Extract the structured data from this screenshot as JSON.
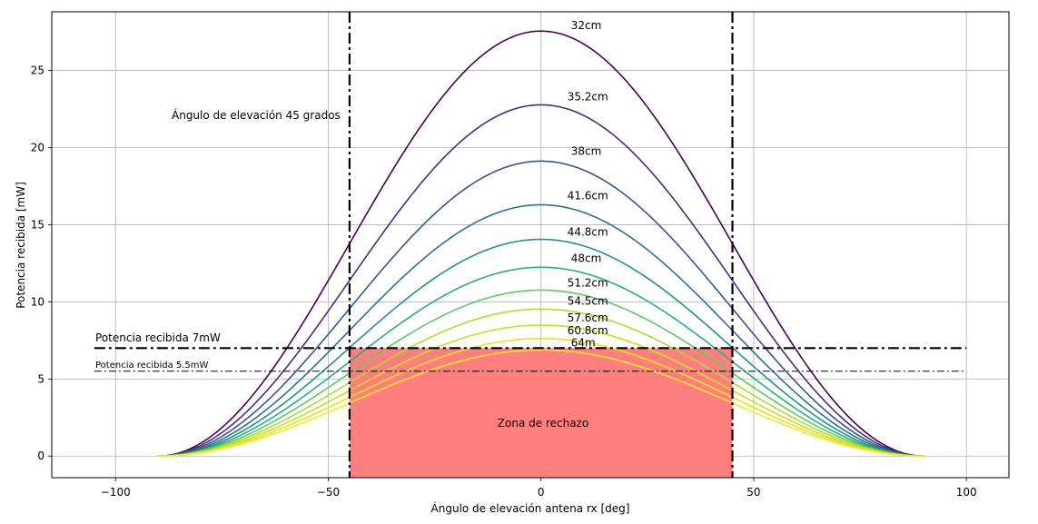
{
  "chart_data": {
    "type": "line",
    "title": "",
    "xlabel": "Ángulo de elevación antena rx [deg]",
    "ylabel": "Potencia recibida [mW]",
    "xlim": [
      -115,
      110
    ],
    "ylim": [
      -1.4,
      28.8
    ],
    "x_ticks": [
      -100,
      -50,
      0,
      50,
      100
    ],
    "x_tick_labels": [
      "−100",
      "−50",
      "0",
      "50",
      "100"
    ],
    "y_ticks": [
      0,
      5,
      10,
      15,
      20,
      25
    ],
    "y_tick_labels": [
      "0",
      "5",
      "10",
      "15",
      "20",
      "25"
    ],
    "grid": true,
    "x": {
      "min": -90,
      "max": 90,
      "step": 2
    },
    "curve_shape": "peak * cos(x)^2",
    "series": [
      {
        "name": "32cm",
        "peak": 27.55,
        "color": "#440154"
      },
      {
        "name": "35.2cm",
        "peak": 22.77,
        "color": "#472d7b"
      },
      {
        "name": "38cm",
        "peak": 19.12,
        "color": "#3b528b"
      },
      {
        "name": "41.6cm",
        "peak": 16.29,
        "color": "#2c728e"
      },
      {
        "name": "44.8cm",
        "peak": 14.05,
        "color": "#21918c"
      },
      {
        "name": "48cm",
        "peak": 12.24,
        "color": "#28ae80"
      },
      {
        "name": "51.2cm",
        "peak": 10.76,
        "color": "#5ec962"
      },
      {
        "name": "54.5cm",
        "peak": 9.53,
        "color": "#addc30"
      },
      {
        "name": "57.6cm",
        "peak": 8.49,
        "color": "#c8e020"
      },
      {
        "name": "60.8cm",
        "peak": 7.62,
        "color": "#e4e51a"
      },
      {
        "name": "64m",
        "peak": 6.88,
        "color": "#fde725"
      }
    ],
    "hlines": [
      {
        "label": "Potencia recibida 7mW",
        "y": 7.0,
        "style": "thick-dashdot"
      },
      {
        "label": "Potencia recibida 5.5mW",
        "y": 5.5,
        "style": "thin-dashdot"
      }
    ],
    "vlines": [
      {
        "x": -45,
        "style": "thick-dashdot"
      },
      {
        "x": 45,
        "style": "thick-dashdot"
      }
    ],
    "rejection_zone": {
      "label": "Zona de rechazo",
      "x": [
        -45,
        45
      ],
      "y_top": 7.0,
      "color": "#ff7f7f"
    },
    "annotations": [
      {
        "text": "Ángulo de elevación 45 grados"
      }
    ]
  }
}
